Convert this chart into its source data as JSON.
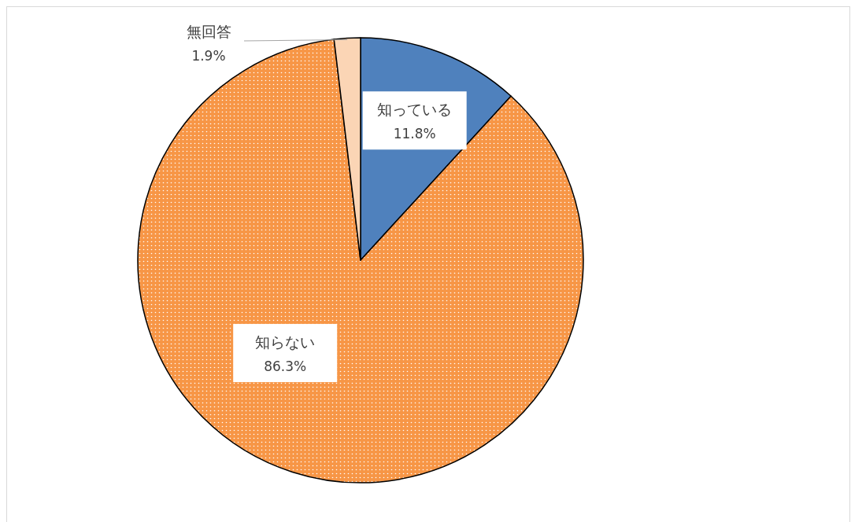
{
  "chart_data": {
    "type": "pie",
    "categories": [
      "知っている",
      "知らない",
      "無回答"
    ],
    "values": [
      11.8,
      86.3,
      1.9
    ],
    "value_labels": [
      "11.8%",
      "86.3%",
      "1.9%"
    ],
    "colors": [
      "#4f81bd",
      "#f79646",
      "#fbd5b5"
    ]
  }
}
